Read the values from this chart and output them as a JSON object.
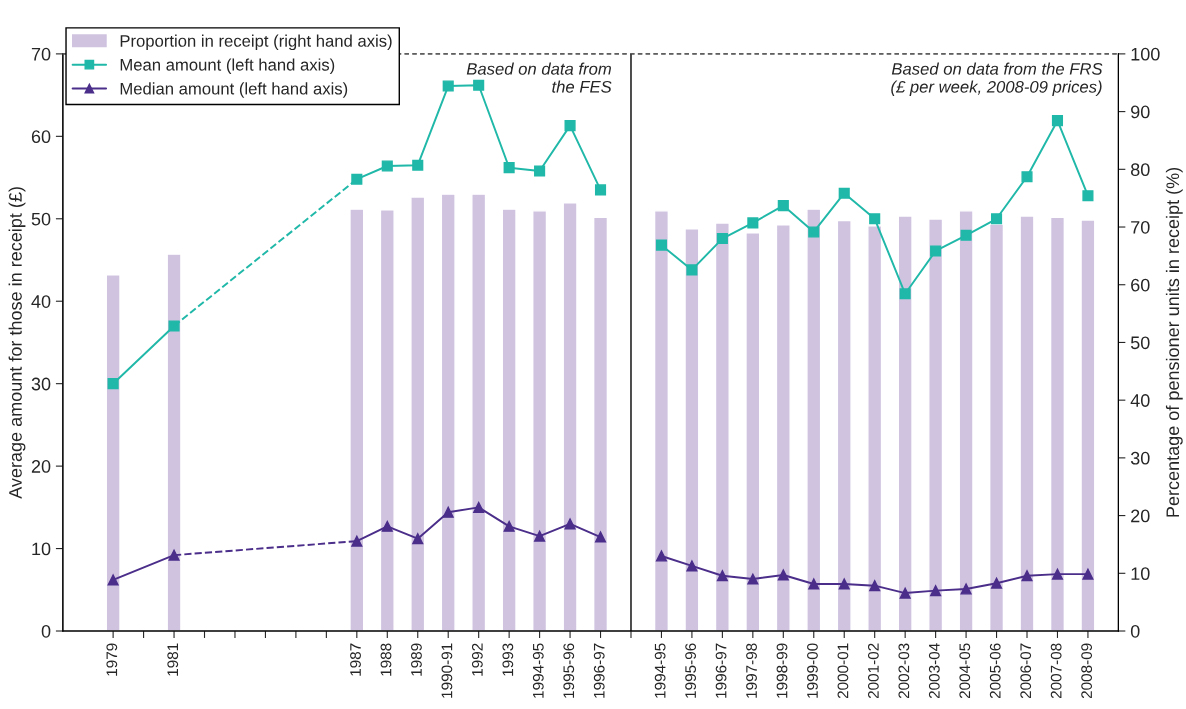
{
  "chart_data": {
    "type": "bar",
    "categories": [
      "1979",
      null,
      "1981",
      null,
      null,
      null,
      null,
      null,
      "1987",
      "1988",
      "1989",
      "1990-91",
      "1992",
      "1993",
      "1994-95",
      "1995-96",
      "1996-97",
      null,
      "1994-95",
      "1995-96",
      "1996-97",
      "1997-98",
      "1998-99",
      "1999-00",
      "2000-01",
      "2001-02",
      "2002-03",
      "2003-04",
      "2004-05",
      "2005-06",
      "2006-07",
      "2007-08",
      "2008-09"
    ],
    "ylabel": "Average amount for those in receipt (£)",
    "y2label": "Percentage of pensioner units in receipt (%)",
    "ylim": [
      0,
      70
    ],
    "yticks": [
      0,
      10,
      20,
      30,
      40,
      50,
      60,
      70
    ],
    "y2lim": [
      0,
      100
    ],
    "y2ticks": [
      0,
      10,
      20,
      30,
      40,
      50,
      60,
      70,
      80,
      90,
      100
    ],
    "legend": "top left",
    "annotations": [
      "Based on data from\nthe FES",
      "Based on data from the FRS\n(£ per week, 2008-09 prices)"
    ],
    "series": [
      {
        "name": "Proportion in receipt (right hand axis)",
        "axis": "y2",
        "color": "#cfc3e0",
        "values": [
          61.7,
          null,
          65.3,
          null,
          null,
          null,
          null,
          null,
          73.1,
          73.0,
          75.2,
          75.7,
          75.7,
          73.1,
          72.8,
          74.2,
          71.7,
          null,
          72.8,
          69.7,
          70.7,
          69.0,
          70.4,
          73.1,
          71.1,
          70.2,
          71.9,
          71.4,
          72.8,
          70.5,
          71.9,
          71.7,
          71.2
        ]
      },
      {
        "name": "Mean amount (left hand axis)",
        "type": "line",
        "color": "#20b8a8",
        "marker": "square",
        "line_style": "solid",
        "values": [
          30.0,
          null,
          37.0,
          null,
          null,
          null,
          null,
          null,
          null,
          null,
          null,
          null,
          null,
          null,
          null,
          null,
          null,
          null,
          null,
          null,
          null,
          null,
          null,
          null,
          null,
          null,
          null,
          null,
          null,
          null,
          null,
          null,
          null
        ]
      },
      {
        "type": "line",
        "color": "#20b8a8",
        "line_style": "dashed",
        "values": [
          null,
          null,
          37.0,
          null,
          null,
          null,
          null,
          null,
          54.8,
          null,
          null,
          null,
          null,
          null,
          null,
          null,
          null,
          null,
          null,
          null,
          null,
          null,
          null,
          null,
          null,
          null,
          null,
          null,
          null,
          null,
          null,
          null,
          null
        ]
      },
      {
        "type": "line",
        "color": "#20b8a8",
        "marker": "square",
        "line_style": "solid",
        "values": [
          null,
          null,
          null,
          null,
          null,
          null,
          null,
          null,
          54.8,
          56.4,
          56.5,
          66.1,
          66.2,
          56.2,
          55.8,
          61.3,
          53.5,
          null,
          null,
          null,
          null,
          null,
          null,
          null,
          null,
          null,
          null,
          null,
          null,
          null,
          null,
          null,
          null
        ]
      },
      {
        "type": "line",
        "color": "#20b8a8",
        "marker": "square",
        "line_style": "solid",
        "values": [
          null,
          null,
          null,
          null,
          null,
          null,
          null,
          null,
          null,
          null,
          null,
          null,
          null,
          null,
          null,
          null,
          null,
          null,
          46.8,
          43.8,
          47.6,
          49.5,
          51.6,
          48.4,
          53.1,
          50.0,
          40.9,
          46.1,
          48.0,
          50.0,
          55.1,
          61.9,
          52.8
        ]
      },
      {
        "name": "Median amount (left hand axis)",
        "type": "line",
        "color": "#4b2e8a",
        "marker": "triangle",
        "line_style": "solid",
        "values": [
          6.2,
          null,
          9.2,
          null,
          null,
          null,
          null,
          null,
          null,
          null,
          null,
          null,
          null,
          null,
          null,
          null,
          null,
          null,
          null,
          null,
          null,
          null,
          null,
          null,
          null,
          null,
          null,
          null,
          null,
          null,
          null,
          null,
          null
        ]
      },
      {
        "type": "line",
        "color": "#4b2e8a",
        "line_style": "dashed",
        "values": [
          null,
          null,
          9.2,
          null,
          null,
          null,
          null,
          null,
          10.9,
          null,
          null,
          null,
          null,
          null,
          null,
          null,
          null,
          null,
          null,
          null,
          null,
          null,
          null,
          null,
          null,
          null,
          null,
          null,
          null,
          null,
          null,
          null,
          null
        ]
      },
      {
        "type": "line",
        "color": "#4b2e8a",
        "marker": "triangle",
        "line_style": "solid",
        "values": [
          null,
          null,
          null,
          null,
          null,
          null,
          null,
          null,
          10.9,
          12.7,
          11.2,
          14.4,
          15.0,
          12.7,
          11.5,
          13.0,
          11.4,
          null,
          null,
          null,
          null,
          null,
          null,
          null,
          null,
          null,
          null,
          null,
          null,
          null,
          null,
          null,
          null
        ]
      },
      {
        "type": "line",
        "color": "#4b2e8a",
        "marker": "triangle",
        "line_style": "solid",
        "values": [
          null,
          null,
          null,
          null,
          null,
          null,
          null,
          null,
          null,
          null,
          null,
          null,
          null,
          null,
          null,
          null,
          null,
          null,
          9.1,
          7.9,
          6.7,
          6.3,
          6.8,
          5.7,
          5.7,
          5.5,
          4.6,
          4.9,
          5.1,
          5.8,
          6.7,
          6.9,
          6.9
        ]
      }
    ]
  }
}
